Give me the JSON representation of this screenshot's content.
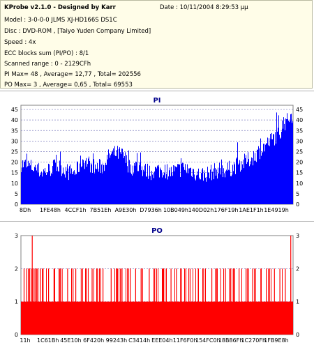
{
  "info": {
    "title": "KProbe v2.1.0 - Designed by Karr",
    "date": "Date : 10/11/2004 8:29:53 μμ",
    "model": "Model : 3-0-0-0 JLMS     XJ-HD166S         DS1C",
    "disc": "Disc : DVD-ROM ,  [Taiyo Yuden Company Limited]",
    "speed": "Speed : 4x",
    "ecc": "ECC blocks sum (PI/PO) : 8/1",
    "range": "Scanned range : 0 - 2129CFh",
    "pi_stats": "PI Max= 48 , Average= 12,77 , Total= 202556",
    "po_stats": "PO Max= 3 , Average= 0,65 , Total= 69553"
  },
  "chart_data": [
    {
      "type": "area",
      "title": "PI",
      "color": "#0000ff",
      "ylim": [
        0,
        47
      ],
      "yticks": [
        0,
        5,
        10,
        15,
        20,
        25,
        30,
        35,
        40,
        45
      ],
      "xticks": [
        "8Dh",
        "1FE48h",
        "4CCF1h",
        "7B51Eh",
        "A9E30h",
        "D7936h",
        "10B049h",
        "140D02h",
        "176F19h",
        "1AE1F1h",
        "1E4919h"
      ],
      "x": [
        0,
        0.025,
        0.05,
        0.075,
        0.1,
        0.125,
        0.15,
        0.175,
        0.2,
        0.225,
        0.25,
        0.275,
        0.3,
        0.325,
        0.35,
        0.375,
        0.4,
        0.425,
        0.45,
        0.475,
        0.5,
        0.525,
        0.55,
        0.575,
        0.6,
        0.625,
        0.65,
        0.675,
        0.7,
        0.725,
        0.75,
        0.775,
        0.8,
        0.825,
        0.85,
        0.875,
        0.9,
        0.925,
        0.95,
        0.975,
        1.0
      ],
      "values": [
        18,
        17,
        16,
        14,
        15,
        17,
        16,
        14,
        14,
        20,
        18,
        16,
        17,
        22,
        23,
        22,
        16,
        17,
        15,
        14,
        15,
        15,
        14,
        15,
        16,
        15,
        13,
        13,
        14,
        15,
        15,
        16,
        18,
        19,
        21,
        24,
        27,
        30,
        33,
        38,
        42
      ],
      "max_values": [
        24,
        23,
        22,
        20,
        25,
        24,
        21,
        21,
        20,
        28,
        26,
        24,
        24,
        28,
        30,
        30,
        24,
        25,
        24,
        21,
        22,
        24,
        20,
        21,
        24,
        21,
        19,
        19,
        20,
        22,
        22,
        24,
        26,
        28,
        30,
        33,
        36,
        38,
        42,
        46,
        48
      ]
    },
    {
      "type": "bar",
      "title": "PO",
      "color": "#ff0000",
      "ylim": [
        0,
        3
      ],
      "yticks": [
        0,
        1,
        2,
        3
      ],
      "xticks": [
        "11h",
        "1C61Bh",
        "45E10h",
        "6F420h",
        "99243h",
        "C3414h",
        "EEE04h",
        "11F6F0h",
        "154FC0h",
        "18B86Fh",
        "1C270Fh",
        "1FB9E8h"
      ],
      "base_level": 1,
      "spikes_at_2": [
        0.01,
        0.02,
        0.03,
        0.04,
        0.05,
        0.06,
        0.07,
        0.08,
        0.1,
        0.12,
        0.14,
        0.15,
        0.17,
        0.19,
        0.2,
        0.22,
        0.24,
        0.26,
        0.28,
        0.3,
        0.33,
        0.35,
        0.37,
        0.4,
        0.42,
        0.44,
        0.47,
        0.49,
        0.52,
        0.55,
        0.57,
        0.6,
        0.62,
        0.65,
        0.67,
        0.7,
        0.72,
        0.75,
        0.78,
        0.8,
        0.83,
        0.85,
        0.88,
        0.9,
        0.93,
        0.95,
        0.97,
        0.99
      ],
      "spikes_at_3": [
        0.04,
        0.99
      ]
    }
  ]
}
